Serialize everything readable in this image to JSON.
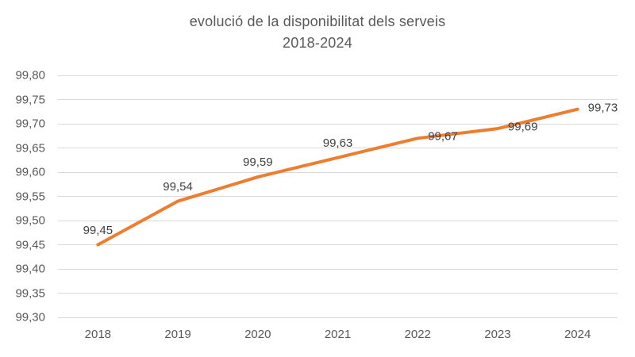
{
  "title": {
    "line1": "evolució de la disponibilitat dels serveis",
    "line2": "2018-2024"
  },
  "chart_data": {
    "type": "line",
    "title": "evolució de la disponibilitat dels serveis 2018-2024",
    "categories": [
      "2018",
      "2019",
      "2020",
      "2021",
      "2022",
      "2023",
      "2024"
    ],
    "values": [
      99.45,
      99.54,
      99.59,
      99.63,
      99.67,
      99.69,
      99.73
    ],
    "point_labels": [
      "99,45",
      "99,54",
      "99,59",
      "99,63",
      "99,67",
      "99,69",
      "99,73"
    ],
    "label_placement": [
      "above",
      "above",
      "above",
      "above",
      "right",
      "right",
      "right"
    ],
    "xlabel": "",
    "ylabel": "",
    "ylim": [
      99.3,
      99.8
    ],
    "y_ticks": [
      99.3,
      99.35,
      99.4,
      99.45,
      99.5,
      99.55,
      99.6,
      99.65,
      99.7,
      99.75,
      99.8
    ],
    "y_tick_labels": [
      "99,30",
      "99,35",
      "99,40",
      "99,45",
      "99,50",
      "99,55",
      "99,60",
      "99,65",
      "99,70",
      "99,75",
      "99,80"
    ],
    "grid": true,
    "legend_position": "none",
    "colors": {
      "line": "#ED7D31",
      "grid": "#D9D9D9",
      "axis_text": "#595959",
      "data_label": "#404040",
      "title_text": "#595959"
    }
  }
}
